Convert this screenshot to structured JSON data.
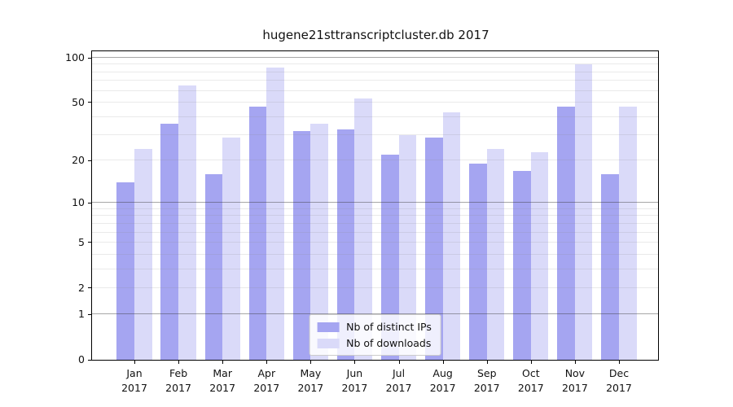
{
  "chart_data": {
    "type": "bar",
    "title": "hugene21sttranscriptcluster.db 2017",
    "categories": [
      "Jan 2017",
      "Feb 2017",
      "Mar 2017",
      "Apr 2017",
      "May 2017",
      "Jun 2017",
      "Jul 2017",
      "Aug 2017",
      "Sep 2017",
      "Oct 2017",
      "Nov 2017",
      "Dec 2017"
    ],
    "series": [
      {
        "name": "Nb of distinct IPs",
        "color": "#a5a5f1",
        "values": [
          14,
          36,
          16,
          47,
          32,
          33,
          22,
          29,
          19,
          17,
          47,
          16
        ]
      },
      {
        "name": "Nb of downloads",
        "color": "#dadaf9",
        "values": [
          24,
          65,
          29,
          86,
          36,
          53,
          30,
          43,
          24,
          23,
          90,
          47
        ]
      }
    ],
    "axis": {
      "scale": "log1p",
      "ylim": [
        0,
        110.6
      ],
      "yticks": [
        0,
        1,
        2,
        5,
        10,
        20,
        50,
        100
      ],
      "major_gridlines": [
        1,
        10,
        100
      ],
      "minor_gridlines": [
        2,
        3,
        4,
        5,
        6,
        7,
        8,
        9,
        20,
        30,
        40,
        50,
        60,
        70,
        80,
        90
      ],
      "grid": true,
      "xlabel": "",
      "ylabel": ""
    },
    "legend_position": "lower center"
  }
}
